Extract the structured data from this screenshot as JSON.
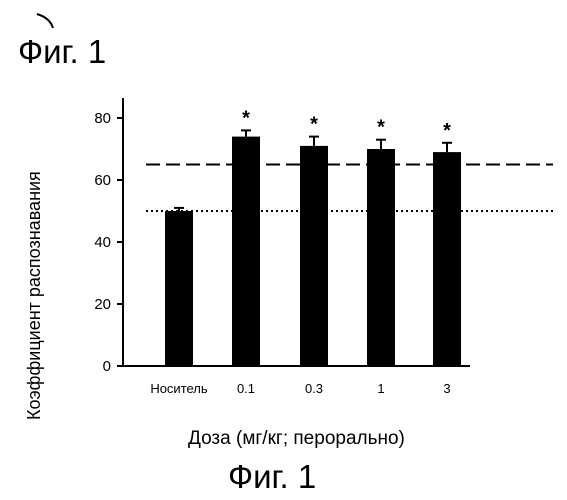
{
  "figure": {
    "top_title": "Фиг. 1",
    "bottom_caption": "Фиг. 1"
  },
  "chart_data": {
    "type": "bar",
    "title": "Фиг. 1",
    "xlabel": "Доза (мг/кг; перорально)",
    "ylabel": "Коэффициент распознавания",
    "ylim": [
      0,
      80
    ],
    "y_ticks": [
      0,
      20,
      40,
      60,
      80
    ],
    "categories": [
      "Носитель",
      "0.1",
      "0.3",
      "1",
      "3"
    ],
    "values": [
      50,
      74,
      71,
      70,
      69
    ],
    "error_up": [
      1,
      2,
      3,
      3,
      3
    ],
    "significance": [
      "",
      "*",
      "*",
      "*",
      "*"
    ],
    "reference_lines": [
      {
        "style": "dashed",
        "value": 65
      },
      {
        "style": "dotted",
        "value": 50
      }
    ],
    "bar_color": "#000000",
    "grid": false
  }
}
